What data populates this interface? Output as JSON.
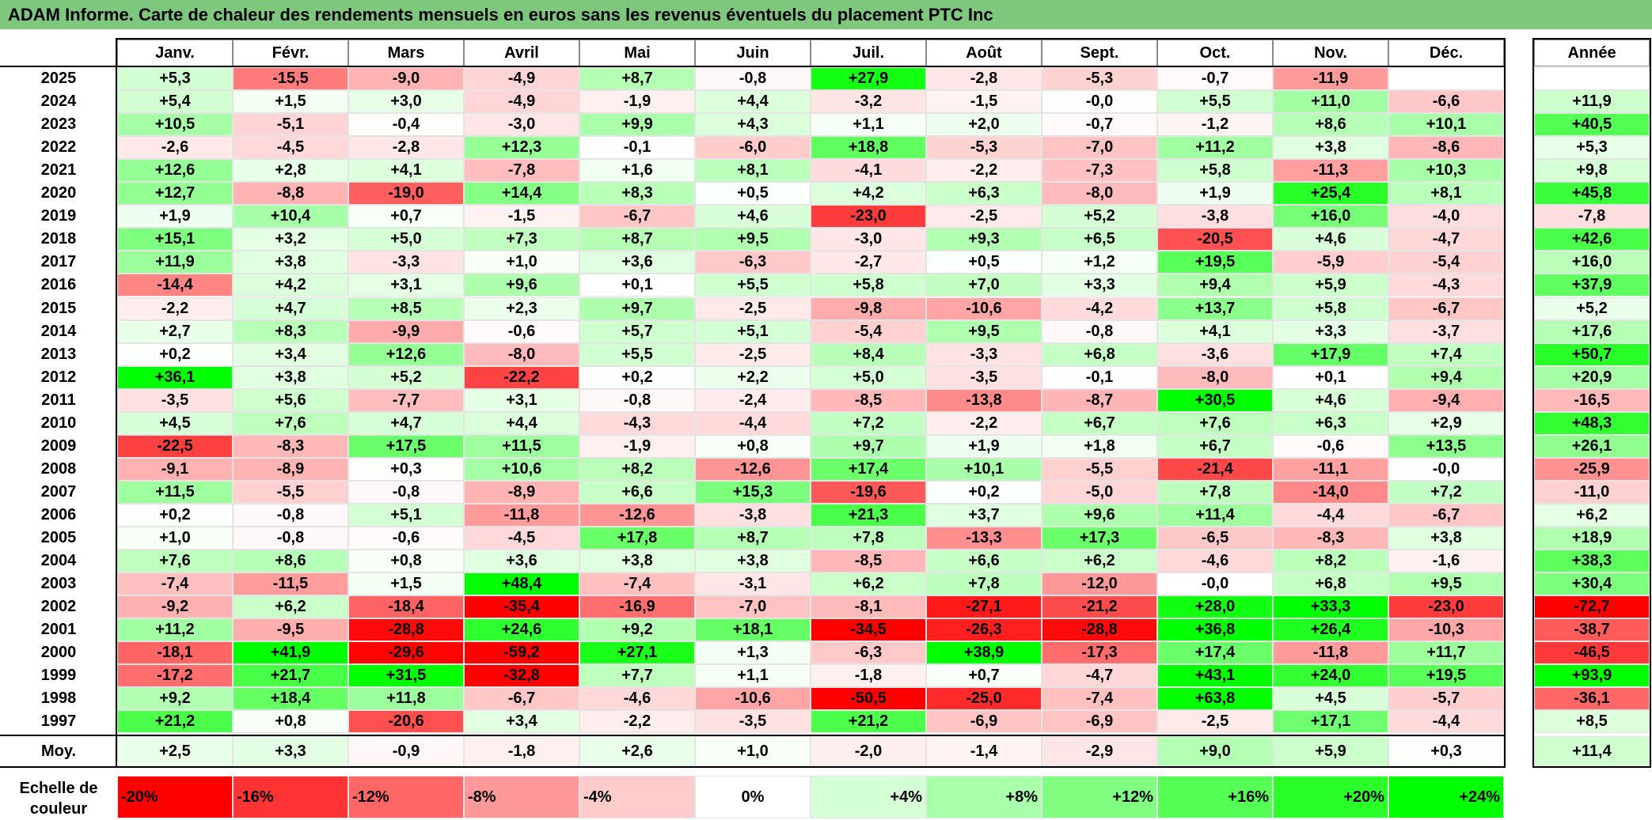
{
  "title": "ADAM Informe. Carte de chaleur des rendements mensuels en euros sans les revenus éventuels du placement PTC Inc",
  "chart_data": {
    "type": "heatmap",
    "title": "ADAM Informe. Carte de chaleur des rendements mensuels en euros sans les revenus éventuels du placement PTC Inc",
    "columns": [
      "Janv.",
      "Févr.",
      "Mars",
      "Avril",
      "Mai",
      "Juin",
      "Juil.",
      "Août",
      "Sept.",
      "Oct.",
      "Nov.",
      "Déc."
    ],
    "year_column": "Année",
    "average_label": "Moy.",
    "rows": [
      {
        "year": "2025",
        "values": [
          "+5,3",
          "-15,5",
          "-9,0",
          "-4,9",
          "+8,7",
          "-0,8",
          "+27,9",
          "-2,8",
          "-5,3",
          "-0,7",
          "-11,9",
          ""
        ],
        "annual": ""
      },
      {
        "year": "2024",
        "values": [
          "+5,4",
          "+1,5",
          "+3,0",
          "-4,9",
          "-1,9",
          "+4,4",
          "-3,2",
          "-1,5",
          "-0,0",
          "+5,5",
          "+11,0",
          "-6,6"
        ],
        "annual": "+11,9"
      },
      {
        "year": "2023",
        "values": [
          "+10,5",
          "-5,1",
          "-0,4",
          "-3,0",
          "+9,9",
          "+4,3",
          "+1,1",
          "+2,0",
          "-0,7",
          "-1,2",
          "+8,6",
          "+10,1"
        ],
        "annual": "+40,5"
      },
      {
        "year": "2022",
        "values": [
          "-2,6",
          "-4,5",
          "-2,8",
          "+12,3",
          "-0,1",
          "-6,0",
          "+18,8",
          "-5,3",
          "-7,0",
          "+11,2",
          "+3,8",
          "-8,6"
        ],
        "annual": "+5,3"
      },
      {
        "year": "2021",
        "values": [
          "+12,6",
          "+2,8",
          "+4,1",
          "-7,8",
          "+1,6",
          "+8,1",
          "-4,1",
          "-2,2",
          "-7,3",
          "+5,8",
          "-11,3",
          "+10,3"
        ],
        "annual": "+9,8"
      },
      {
        "year": "2020",
        "values": [
          "+12,7",
          "-8,8",
          "-19,0",
          "+14,4",
          "+8,3",
          "+0,5",
          "+4,2",
          "+6,3",
          "-8,0",
          "+1,9",
          "+25,4",
          "+8,1"
        ],
        "annual": "+45,8"
      },
      {
        "year": "2019",
        "values": [
          "+1,9",
          "+10,4",
          "+0,7",
          "-1,5",
          "-6,7",
          "+4,6",
          "-23,0",
          "-2,5",
          "+5,2",
          "-3,8",
          "+16,0",
          "-4,0"
        ],
        "annual": "-7,8"
      },
      {
        "year": "2018",
        "values": [
          "+15,1",
          "+3,2",
          "+5,0",
          "+7,3",
          "+8,7",
          "+9,5",
          "-3,0",
          "+9,3",
          "+6,5",
          "-20,5",
          "+4,6",
          "-4,7"
        ],
        "annual": "+42,6"
      },
      {
        "year": "2017",
        "values": [
          "+11,9",
          "+3,8",
          "-3,3",
          "+1,0",
          "+3,6",
          "-6,3",
          "-2,7",
          "+0,5",
          "+1,2",
          "+19,5",
          "-5,9",
          "-5,4"
        ],
        "annual": "+16,0"
      },
      {
        "year": "2016",
        "values": [
          "-14,4",
          "+4,2",
          "+3,1",
          "+9,6",
          "+0,1",
          "+5,5",
          "+5,8",
          "+7,0",
          "+3,3",
          "+9,4",
          "+5,9",
          "-4,3"
        ],
        "annual": "+37,9"
      },
      {
        "year": "2015",
        "values": [
          "-2,2",
          "+4,7",
          "+8,5",
          "+2,3",
          "+9,7",
          "-2,5",
          "-9,8",
          "-10,6",
          "-4,2",
          "+13,7",
          "+5,8",
          "-6,7"
        ],
        "annual": "+5,2"
      },
      {
        "year": "2014",
        "values": [
          "+2,7",
          "+8,3",
          "-9,9",
          "-0,6",
          "+5,7",
          "+5,1",
          "-5,4",
          "+9,5",
          "-0,8",
          "+4,1",
          "+3,3",
          "-3,7"
        ],
        "annual": "+17,6"
      },
      {
        "year": "2013",
        "values": [
          "+0,2",
          "+3,4",
          "+12,6",
          "-8,0",
          "+5,5",
          "-2,5",
          "+8,4",
          "-3,3",
          "+6,8",
          "-3,6",
          "+17,9",
          "+7,4"
        ],
        "annual": "+50,7"
      },
      {
        "year": "2012",
        "values": [
          "+36,1",
          "+3,8",
          "+5,2",
          "-22,2",
          "+0,2",
          "+2,2",
          "+5,0",
          "-3,5",
          "-0,1",
          "-8,0",
          "+0,1",
          "+9,4"
        ],
        "annual": "+20,9"
      },
      {
        "year": "2011",
        "values": [
          "-3,5",
          "+5,6",
          "-7,7",
          "+3,1",
          "-0,8",
          "-2,4",
          "-8,5",
          "-13,8",
          "-8,7",
          "+30,5",
          "+4,6",
          "-9,4"
        ],
        "annual": "-16,5"
      },
      {
        "year": "2010",
        "values": [
          "+4,5",
          "+7,6",
          "+4,7",
          "+4,4",
          "-4,3",
          "-4,4",
          "+7,2",
          "-2,2",
          "+6,7",
          "+7,6",
          "+6,3",
          "+2,9"
        ],
        "annual": "+48,3"
      },
      {
        "year": "2009",
        "values": [
          "-22,5",
          "-8,3",
          "+17,5",
          "+11,5",
          "-1,9",
          "+0,8",
          "+9,7",
          "+1,9",
          "+1,8",
          "+6,7",
          "-0,6",
          "+13,5"
        ],
        "annual": "+26,1"
      },
      {
        "year": "2008",
        "values": [
          "-9,1",
          "-8,9",
          "+0,3",
          "+10,6",
          "+8,2",
          "-12,6",
          "+17,4",
          "+10,1",
          "-5,5",
          "-21,4",
          "-11,1",
          "-0,0"
        ],
        "annual": "-25,9"
      },
      {
        "year": "2007",
        "values": [
          "+11,5",
          "-5,5",
          "-0,8",
          "-8,9",
          "+6,6",
          "+15,3",
          "-19,6",
          "+0,2",
          "-5,0",
          "+7,8",
          "-14,0",
          "+7,2"
        ],
        "annual": "-11,0"
      },
      {
        "year": "2006",
        "values": [
          "+0,2",
          "-0,8",
          "+5,1",
          "-11,8",
          "-12,6",
          "-3,8",
          "+21,3",
          "+3,7",
          "+9,6",
          "+11,4",
          "-4,4",
          "-6,7"
        ],
        "annual": "+6,2"
      },
      {
        "year": "2005",
        "values": [
          "+1,0",
          "-0,8",
          "-0,6",
          "-4,5",
          "+17,8",
          "+8,7",
          "+7,8",
          "-13,3",
          "+17,3",
          "-6,5",
          "-8,3",
          "+3,8"
        ],
        "annual": "+18,9"
      },
      {
        "year": "2004",
        "values": [
          "+7,6",
          "+8,6",
          "+0,8",
          "+3,6",
          "+3,8",
          "+3,8",
          "-8,5",
          "+6,6",
          "+6,2",
          "-4,6",
          "+8,2",
          "-1,6"
        ],
        "annual": "+38,3"
      },
      {
        "year": "2003",
        "values": [
          "-7,4",
          "-11,5",
          "+1,5",
          "+48,4",
          "-7,4",
          "-3,1",
          "+6,2",
          "+7,8",
          "-12,0",
          "-0,0",
          "+6,8",
          "+9,5"
        ],
        "annual": "+30,4"
      },
      {
        "year": "2002",
        "values": [
          "-9,2",
          "+6,2",
          "-18,4",
          "-35,4",
          "-16,9",
          "-7,0",
          "-8,1",
          "-27,1",
          "-21,2",
          "+28,0",
          "+33,3",
          "-23,0"
        ],
        "annual": "-72,7"
      },
      {
        "year": "2001",
        "values": [
          "+11,2",
          "-9,5",
          "-28,8",
          "+24,6",
          "+9,2",
          "+18,1",
          "-34,5",
          "-26,3",
          "-28,8",
          "+36,8",
          "+26,4",
          "-10,3"
        ],
        "annual": "-38,7"
      },
      {
        "year": "2000",
        "values": [
          "-18,1",
          "+41,9",
          "-29,6",
          "-59,2",
          "+27,1",
          "+1,3",
          "-6,3",
          "+38,9",
          "-17,3",
          "+17,4",
          "-11,8",
          "+11,7"
        ],
        "annual": "-46,5"
      },
      {
        "year": "1999",
        "values": [
          "-17,2",
          "+21,7",
          "+31,5",
          "-32,8",
          "+7,7",
          "+1,1",
          "-1,8",
          "+0,7",
          "-4,7",
          "+43,1",
          "+24,0",
          "+19,5"
        ],
        "annual": "+93,9"
      },
      {
        "year": "1998",
        "values": [
          "+9,2",
          "+18,4",
          "+11,8",
          "-6,7",
          "-4,6",
          "-10,6",
          "-50,5",
          "-25,0",
          "-7,4",
          "+63,8",
          "+4,5",
          "-5,7"
        ],
        "annual": "-36,1"
      },
      {
        "year": "1997",
        "values": [
          "+21,2",
          "+0,8",
          "-20,6",
          "+3,4",
          "-2,2",
          "-3,5",
          "+21,2",
          "-6,9",
          "-6,9",
          "-2,5",
          "+17,1",
          "-4,4"
        ],
        "annual": "+8,5"
      }
    ],
    "averages": {
      "values": [
        "+2,5",
        "+3,3",
        "-0,9",
        "-1,8",
        "+2,6",
        "+1,0",
        "-2,0",
        "-1,4",
        "-2,9",
        "+9,0",
        "+5,9",
        "+0,3"
      ],
      "annual": "+11,4"
    },
    "legend": {
      "label": "Echelle de couleur",
      "entries": [
        "-20%",
        "-16%",
        "-12%",
        "-8%",
        "-4%",
        "0%",
        "+4%",
        "+8%",
        "+12%",
        "+16%",
        "+20%",
        "+24%"
      ],
      "scale_min": -20,
      "scale_max": 24
    },
    "colors": {
      "title_bar": "#7DC87D",
      "negative_max": "#FF0000",
      "positive_max": "#00FF00",
      "neutral": "#FFFFFF"
    }
  }
}
